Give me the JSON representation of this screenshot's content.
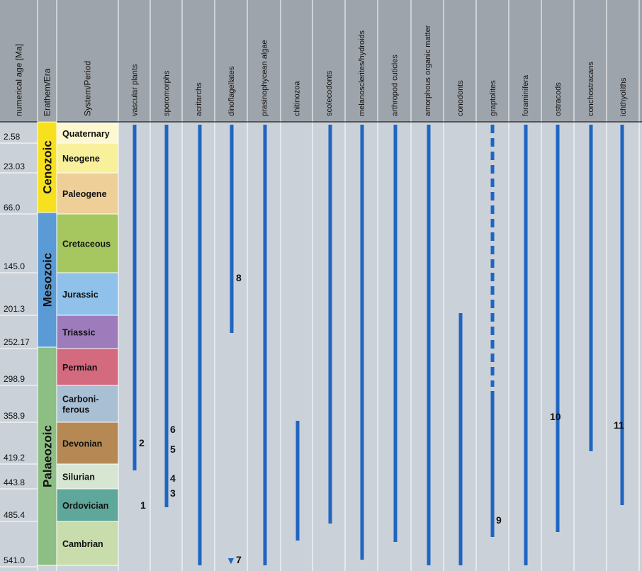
{
  "headers": {
    "age": "numerical age [Ma]",
    "era": "Erathem/Era",
    "period": "System/Period"
  },
  "groups": [
    "vascular plants",
    "sporomorphs",
    "acritarchs",
    "dinoflagellates",
    "prasinophycean algae",
    "chitinozoa",
    "scolecodonts",
    "melanosclerites/hydroids",
    "arthropod cuticles",
    "amorphous organic matter",
    "conodonts",
    "graptolites",
    "foraminifera",
    "ostracods",
    "conchostracans",
    "ichthyoliths"
  ],
  "ages": [
    "2.58",
    "23.03",
    "66.0",
    "145.0",
    "201.3",
    "252.17",
    "298.9",
    "358.9",
    "419.2",
    "443.8",
    "485.4",
    "541.0"
  ],
  "eras": [
    {
      "name": "Cenozoic",
      "color": "#f7e11f"
    },
    {
      "name": "Mesozoic",
      "color": "#5b9bd5"
    },
    {
      "name": "Palaeozoic",
      "color": "#8dbf84"
    }
  ],
  "periods": [
    {
      "name": "Quaternary",
      "color": "#fef8d0"
    },
    {
      "name": "Neogene",
      "color": "#f8f09a"
    },
    {
      "name": "Paleogene",
      "color": "#efcf98"
    },
    {
      "name": "Cretaceous",
      "color": "#a6c760"
    },
    {
      "name": "Jurassic",
      "color": "#8fc1ea"
    },
    {
      "name": "Triassic",
      "color": "#9e7cbc"
    },
    {
      "name": "Permian",
      "color": "#d46a7e"
    },
    {
      "name": "Carboni-\nferous",
      "color": "#a8bfd4"
    },
    {
      "name": "Devonian",
      "color": "#b68954"
    },
    {
      "name": "Silurian",
      "color": "#d6e6d2"
    },
    {
      "name": "Ordovician",
      "color": "#5fa79a"
    },
    {
      "name": "Cambrian",
      "color": "#c8dcac"
    }
  ],
  "ranges": [
    {
      "group": "vascular plants",
      "from": "Silurian",
      "to": "Present"
    },
    {
      "group": "sporomorphs",
      "from": "Ordovician",
      "to": "Present"
    },
    {
      "group": "acritarchs",
      "from": "Cambrian",
      "to": "Present"
    },
    {
      "group": "dinoflagellates",
      "from": "Triassic",
      "to": "Present"
    },
    {
      "group": "prasinophycean algae",
      "from": "Cambrian",
      "to": "Present"
    },
    {
      "group": "chitinozoa",
      "from": "Cambrian",
      "to": "Devonian"
    },
    {
      "group": "scolecodonts",
      "from": "Ordovician",
      "to": "Present"
    },
    {
      "group": "melanosclerites/hydroids",
      "from": "Cambrian",
      "to": "Present"
    },
    {
      "group": "arthropod cuticles",
      "from": "Cambrian",
      "to": "Present"
    },
    {
      "group": "amorphous organic matter",
      "from": "Cambrian",
      "to": "Present"
    },
    {
      "group": "conodonts",
      "from": "Cambrian",
      "to": "Triassic"
    },
    {
      "group": "graptolites",
      "from": "Cambrian",
      "to": "Carboniferous",
      "dashed_to": "Present"
    },
    {
      "group": "foraminifera",
      "from": "Cambrian",
      "to": "Present"
    },
    {
      "group": "ostracods",
      "from": "Cambrian",
      "to": "Present"
    },
    {
      "group": "conchostracans",
      "from": "Devonian",
      "to": "Present"
    },
    {
      "group": "ichthyoliths",
      "from": "Ordovician",
      "to": "Present"
    }
  ],
  "notes": [
    "2",
    "1",
    "6",
    "5",
    "4",
    "3",
    "7",
    "8",
    "9",
    "10",
    "11"
  ],
  "marker_symbol": "▼",
  "colors": {
    "bar": "#1f65c2",
    "panel": "#cbd1d8",
    "header": "#9ea4ab",
    "line": "#ffffff"
  }
}
